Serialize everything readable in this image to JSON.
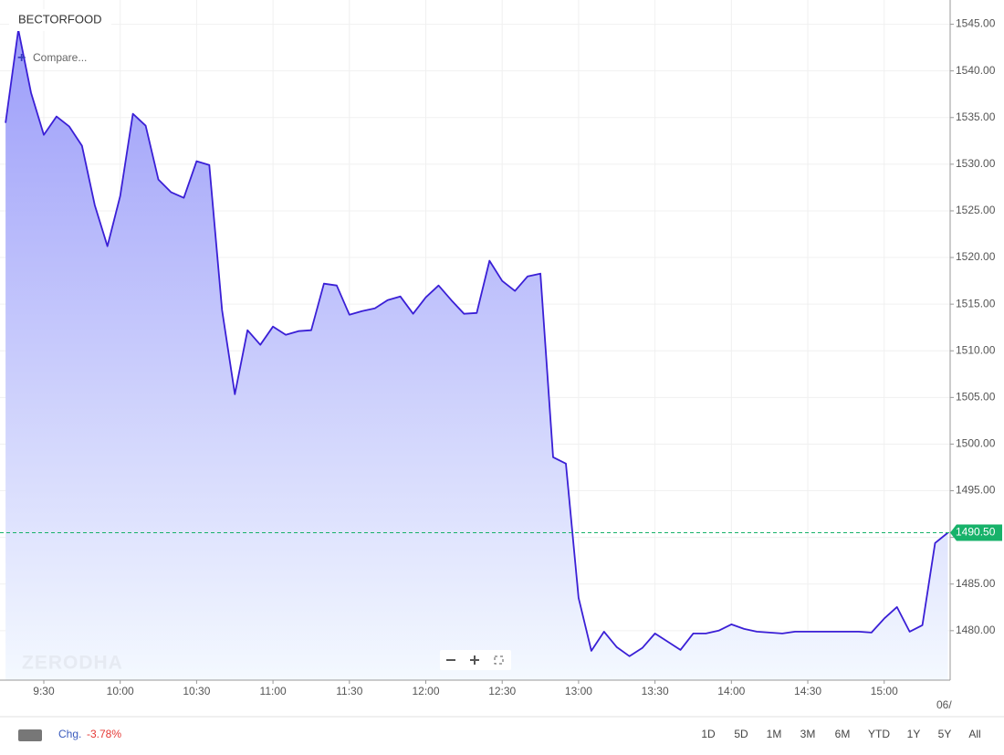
{
  "chart_data": {
    "type": "area",
    "title": "BECTORFOOD",
    "compare_label": "Compare...",
    "watermark": "ZERODHA",
    "x": [
      555,
      560,
      565,
      570,
      575,
      580,
      585,
      590,
      595,
      600,
      605,
      610,
      615,
      620,
      625,
      630,
      635,
      640,
      645,
      650,
      655,
      660,
      665,
      670,
      675,
      680,
      685,
      690,
      695,
      700,
      705,
      710,
      715,
      720,
      725,
      730,
      735,
      740,
      745,
      750,
      755,
      760,
      765,
      770,
      775,
      780,
      785,
      790,
      795,
      800,
      805,
      810,
      815,
      820,
      825,
      830,
      835,
      840,
      845,
      850,
      855,
      860,
      865,
      870,
      875,
      880,
      885,
      890,
      895,
      900,
      905,
      910,
      915,
      920,
      925
    ],
    "values": [
      1534.43,
      1544.41,
      1537.66,
      1533.15,
      1535.11,
      1534.04,
      1531.98,
      1525.62,
      1521.21,
      1526.6,
      1535.41,
      1534.13,
      1528.36,
      1526.99,
      1526.4,
      1530.32,
      1529.92,
      1514.36,
      1505.35,
      1512.21,
      1510.64,
      1512.6,
      1511.72,
      1512.11,
      1512.21,
      1517.2,
      1517.0,
      1513.87,
      1514.26,
      1514.55,
      1515.44,
      1515.83,
      1513.97,
      1515.73,
      1517.0,
      1515.44,
      1513.97,
      1514.06,
      1519.65,
      1517.49,
      1516.41,
      1517.98,
      1518.27,
      1498.6,
      1497.91,
      1483.52,
      1477.84,
      1479.9,
      1478.23,
      1477.26,
      1478.14,
      1479.7,
      1478.82,
      1477.94,
      1479.7,
      1479.7,
      1480.0,
      1480.68,
      1480.19,
      1479.9,
      1479.8,
      1479.7,
      1479.9,
      1479.9,
      1479.9,
      1479.9,
      1479.9,
      1479.9,
      1479.8,
      1481.3,
      1482.54,
      1479.9,
      1480.59,
      1489.4,
      1490.5
    ],
    "color": "#3a1fd6",
    "fill_top": "#9c9df9",
    "fill_bottom": "#f4f9ff",
    "last_price": {
      "value": 1490.5,
      "label": "1490.50"
    },
    "last_price_color": "#17b26a",
    "xlim": [
      552.8,
      925.9
    ],
    "ylim": [
      1474.7,
      1547.6
    ],
    "xticks": [
      {
        "value": 570,
        "label": "9:30"
      },
      {
        "value": 600,
        "label": "10:00"
      },
      {
        "value": 630,
        "label": "10:30"
      },
      {
        "value": 660,
        "label": "11:00"
      },
      {
        "value": 690,
        "label": "11:30"
      },
      {
        "value": 720,
        "label": "12:00"
      },
      {
        "value": 750,
        "label": "12:30"
      },
      {
        "value": 780,
        "label": "13:00"
      },
      {
        "value": 810,
        "label": "13:30"
      },
      {
        "value": 840,
        "label": "14:00"
      },
      {
        "value": 870,
        "label": "14:30"
      },
      {
        "value": 900,
        "label": "15:00"
      }
    ],
    "yticks": [
      {
        "value": 1480,
        "label": "1480.00"
      },
      {
        "value": 1485,
        "label": "1485.00"
      },
      {
        "value": 1490,
        "label": "1490.00"
      },
      {
        "value": 1495,
        "label": "1495.00"
      },
      {
        "value": 1500,
        "label": "1500.00"
      },
      {
        "value": 1505,
        "label": "1505.00"
      },
      {
        "value": 1510,
        "label": "1510.00"
      },
      {
        "value": 1515,
        "label": "1515.00"
      },
      {
        "value": 1520,
        "label": "1520.00"
      },
      {
        "value": 1525,
        "label": "1525.00"
      },
      {
        "value": 1530,
        "label": "1530.00"
      },
      {
        "value": 1535,
        "label": "1535.00"
      },
      {
        "value": 1540,
        "label": "1540.00"
      },
      {
        "value": 1545,
        "label": "1545.00"
      }
    ],
    "date_label": "06/",
    "grid": true
  },
  "footer": {
    "change_label": "Chg.",
    "change_value": "-3.78%",
    "ranges": [
      "1D",
      "5D",
      "1M",
      "3M",
      "6M",
      "YTD",
      "1Y",
      "5Y",
      "All"
    ]
  }
}
